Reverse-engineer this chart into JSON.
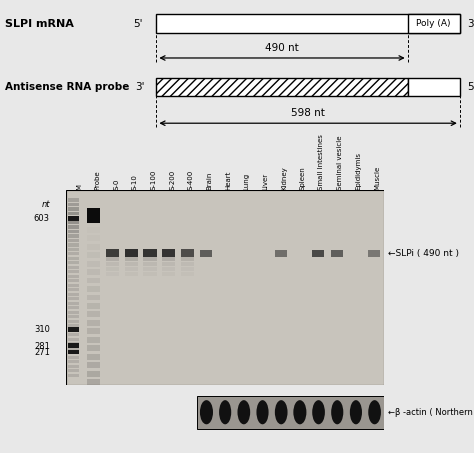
{
  "bg_color": "#e8e8e8",
  "diagram": {
    "mrna_label": "SLPI mRNA",
    "mrna_5prime": "5'",
    "mrna_3prime": "3'",
    "poly_a_label": "Poly (A)",
    "probe_label": "Antisense RNA probe",
    "probe_3prime": "3'",
    "probe_5prime": "5'",
    "nt_490": "490 nt",
    "nt_598": "598 nt"
  },
  "gel": {
    "lane_labels": [
      "M",
      "Probe",
      "S-0",
      "S-10",
      "S-100",
      "S-200",
      "S-400",
      "Brain",
      "Heart",
      "Lung",
      "Liver",
      "Kidney",
      "Spleen",
      "Small Intestines",
      "Seminal vesicle",
      "Epididymis",
      "Muscle"
    ],
    "marker_label": "nt",
    "marker_sizes": [
      603,
      310,
      281,
      271
    ],
    "slpi_label": "←SLPi ( 490 nt )",
    "bactin_label": "←β -actin ( Northern )"
  }
}
